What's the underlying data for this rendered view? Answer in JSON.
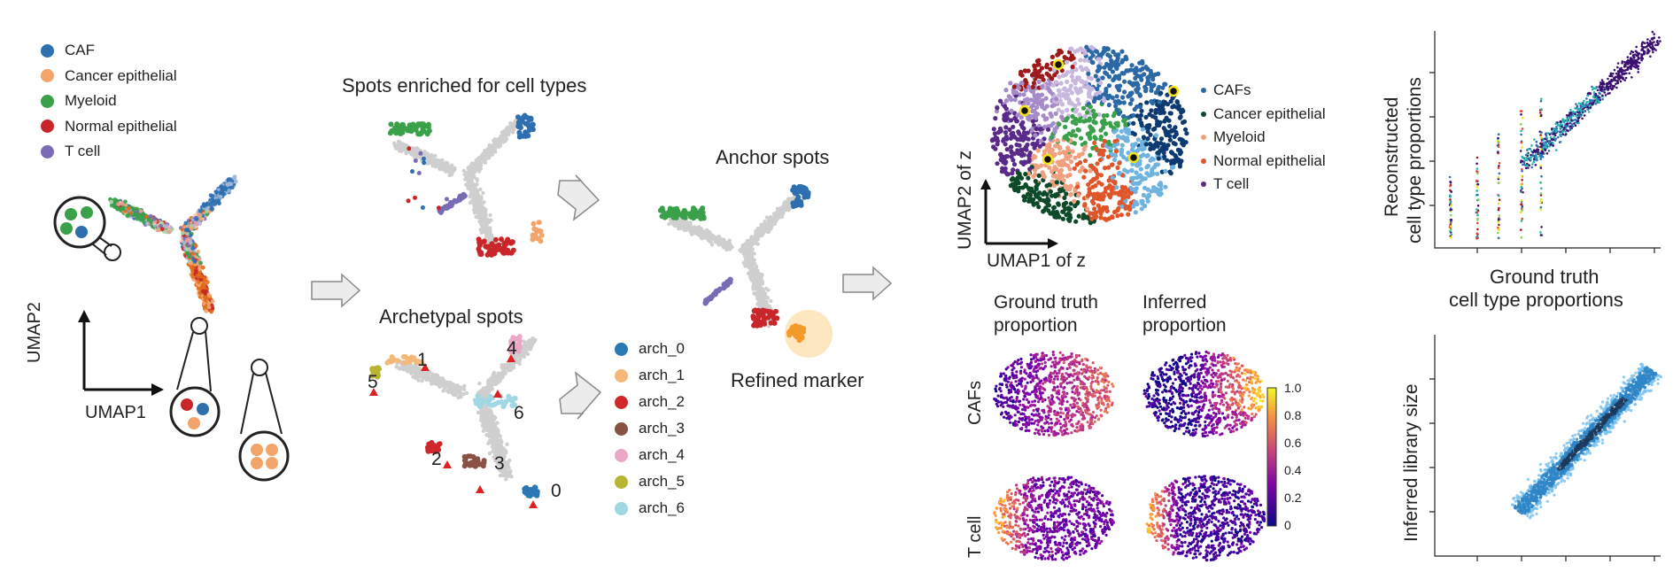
{
  "cell_legend": [
    {
      "label": "CAF",
      "color": "#2e6fb0"
    },
    {
      "label": "Cancer epithelial",
      "color": "#f2a46a"
    },
    {
      "label": "Myeloid",
      "color": "#3aa14a"
    },
    {
      "label": "Normal epithelial",
      "color": "#c8262a"
    },
    {
      "label": "T cell",
      "color": "#7a6bb5"
    }
  ],
  "umap_axes": {
    "x": "UMAP1",
    "y": "UMAP2"
  },
  "enriched_title": "Spots enriched for cell types",
  "archetypal_title": "Archetypal spots",
  "arch_numbers": [
    "1",
    "4",
    "5",
    "6",
    "2",
    "3",
    "0"
  ],
  "arch_legend": [
    {
      "label": "arch_0",
      "color": "#2a78b4"
    },
    {
      "label": "arch_1",
      "color": "#f6b77a"
    },
    {
      "label": "arch_2",
      "color": "#d0272a"
    },
    {
      "label": "arch_3",
      "color": "#8a5145"
    },
    {
      "label": "arch_4",
      "color": "#eaa7c6"
    },
    {
      "label": "arch_5",
      "color": "#b7b531"
    },
    {
      "label": "arch_6",
      "color": "#9fd7e3"
    }
  ],
  "anchor_title": "Anchor spots",
  "refined_label": "Refined marker",
  "latent_axes": {
    "x": "UMAP1 of z",
    "y": "UMAP2 of z"
  },
  "latent_legend": [
    {
      "label": "CAFs",
      "color": "#2a68a6"
    },
    {
      "label": "Cancer epithelial",
      "color": "#0c4a2a"
    },
    {
      "label": "Myeloid",
      "color": "#f0a07e"
    },
    {
      "label": "Normal epithelial",
      "color": "#e0562a"
    },
    {
      "label": "T cell",
      "color": "#5a2a8a"
    }
  ],
  "proportion_titles": {
    "ground_truth": [
      "Ground truth",
      "proportion"
    ],
    "inferred": [
      "Inferred",
      "proportion"
    ]
  },
  "row_labels": [
    "CAFs",
    "T cell"
  ],
  "colorbar_ticks": [
    "1.0",
    "0.8",
    "0.6",
    "0.4",
    "0.2",
    "0"
  ],
  "scatter1": {
    "ylabel": [
      "Reconstructed",
      "cell type proportions"
    ],
    "xlabel": [
      "Ground truth",
      "cell type proportions"
    ]
  },
  "scatter2": {
    "ylabel": "Inferred library size"
  }
}
